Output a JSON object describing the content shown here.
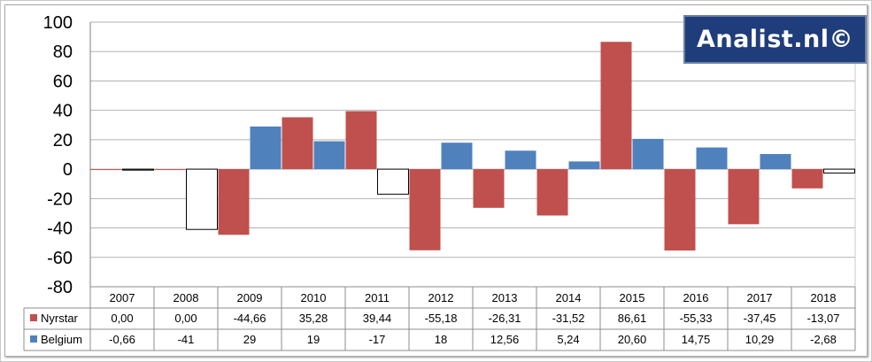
{
  "logo": {
    "text": "Analist.nl©"
  },
  "chart_data": {
    "type": "bar",
    "categories": [
      "2007",
      "2008",
      "2009",
      "2010",
      "2011",
      "2012",
      "2013",
      "2014",
      "2015",
      "2016",
      "2017",
      "2018"
    ],
    "ylim": [
      -80,
      100
    ],
    "yticks": [
      100,
      80,
      60,
      40,
      20,
      0,
      -20,
      -40,
      -60,
      -80
    ],
    "grid": true,
    "data_table": true,
    "series": [
      {
        "name": "Nyrstar",
        "color": "#c0504d",
        "values": [
          0.0,
          0.0,
          -44.66,
          35.28,
          39.44,
          -55.18,
          -26.31,
          -31.52,
          86.61,
          -55.33,
          -37.45,
          -13.07
        ],
        "labels": [
          "0,00",
          "0,00",
          "-44,66",
          "35,28",
          "39,44",
          "-55,18",
          "-26,31",
          "-31,52",
          "86,61",
          "-55,33",
          "-37,45",
          "-13,07"
        ]
      },
      {
        "name": "Belgium",
        "color": "#4f81bd",
        "values": [
          -0.66,
          -41,
          29,
          19,
          -17,
          18,
          12.56,
          5.24,
          20.6,
          14.75,
          10.29,
          -2.68
        ],
        "labels": [
          "-0,66",
          "-41",
          "29",
          "19",
          "-17",
          "18",
          "12,56",
          "5,24",
          "20,60",
          "14,75",
          "10,29",
          "-2,68"
        ]
      }
    ],
    "invert_negative": {
      "series": "Belgium",
      "fill": "#ffffff",
      "stroke": "#000000"
    }
  }
}
